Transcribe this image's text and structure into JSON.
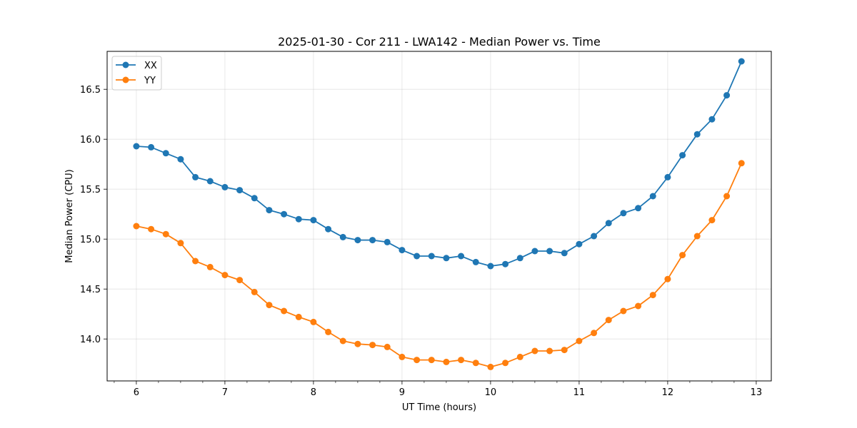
{
  "chart_data": {
    "type": "line",
    "title": "2025-01-30 - Cor 211 - LWA142 - Median Power vs. Time",
    "xlabel": "UT Time (hours)",
    "ylabel": "Median Power (CPU)",
    "xlim": [
      5.67,
      13.17
    ],
    "ylim": [
      13.58,
      16.88
    ],
    "xticks": [
      6,
      7,
      8,
      9,
      10,
      11,
      12,
      13
    ],
    "yticks": [
      14.0,
      14.5,
      15.0,
      15.5,
      16.0,
      16.5
    ],
    "ytick_labels": [
      "14.0",
      "14.5",
      "15.0",
      "15.5",
      "16.0",
      "16.5"
    ],
    "x_minor_step": 0.25,
    "grid": true,
    "legend_position": "top-left",
    "x": [
      6.0,
      6.1667,
      6.3333,
      6.5,
      6.6667,
      6.8333,
      7.0,
      7.1667,
      7.3333,
      7.5,
      7.6667,
      7.8333,
      8.0,
      8.1667,
      8.3333,
      8.5,
      8.6667,
      8.8333,
      9.0,
      9.1667,
      9.3333,
      9.5,
      9.6667,
      9.8333,
      10.0,
      10.1667,
      10.3333,
      10.5,
      10.6667,
      10.8333,
      11.0,
      11.1667,
      11.3333,
      11.5,
      11.6667,
      11.8333,
      12.0,
      12.1667,
      12.3333,
      12.5,
      12.6667,
      12.8333
    ],
    "series": [
      {
        "name": "XX",
        "color": "#1f77b4",
        "values": [
          15.93,
          15.92,
          15.86,
          15.8,
          15.62,
          15.58,
          15.52,
          15.49,
          15.41,
          15.29,
          15.25,
          15.2,
          15.19,
          15.1,
          15.02,
          14.99,
          14.99,
          14.97,
          14.89,
          14.83,
          14.83,
          14.81,
          14.83,
          14.77,
          14.73,
          14.75,
          14.81,
          14.88,
          14.88,
          14.86,
          14.95,
          15.03,
          15.16,
          15.26,
          15.31,
          15.43,
          15.62,
          15.84,
          16.05,
          16.2,
          16.44,
          16.78
        ]
      },
      {
        "name": "YY",
        "color": "#ff7f0e",
        "values": [
          15.13,
          15.1,
          15.05,
          14.96,
          14.78,
          14.72,
          14.64,
          14.59,
          14.47,
          14.34,
          14.28,
          14.22,
          14.17,
          14.07,
          13.98,
          13.95,
          13.94,
          13.92,
          13.82,
          13.79,
          13.79,
          13.77,
          13.79,
          13.76,
          13.72,
          13.76,
          13.82,
          13.88,
          13.88,
          13.89,
          13.98,
          14.06,
          14.19,
          14.28,
          14.33,
          14.44,
          14.6,
          14.84,
          15.03,
          15.19,
          15.43,
          15.76
        ]
      }
    ]
  }
}
